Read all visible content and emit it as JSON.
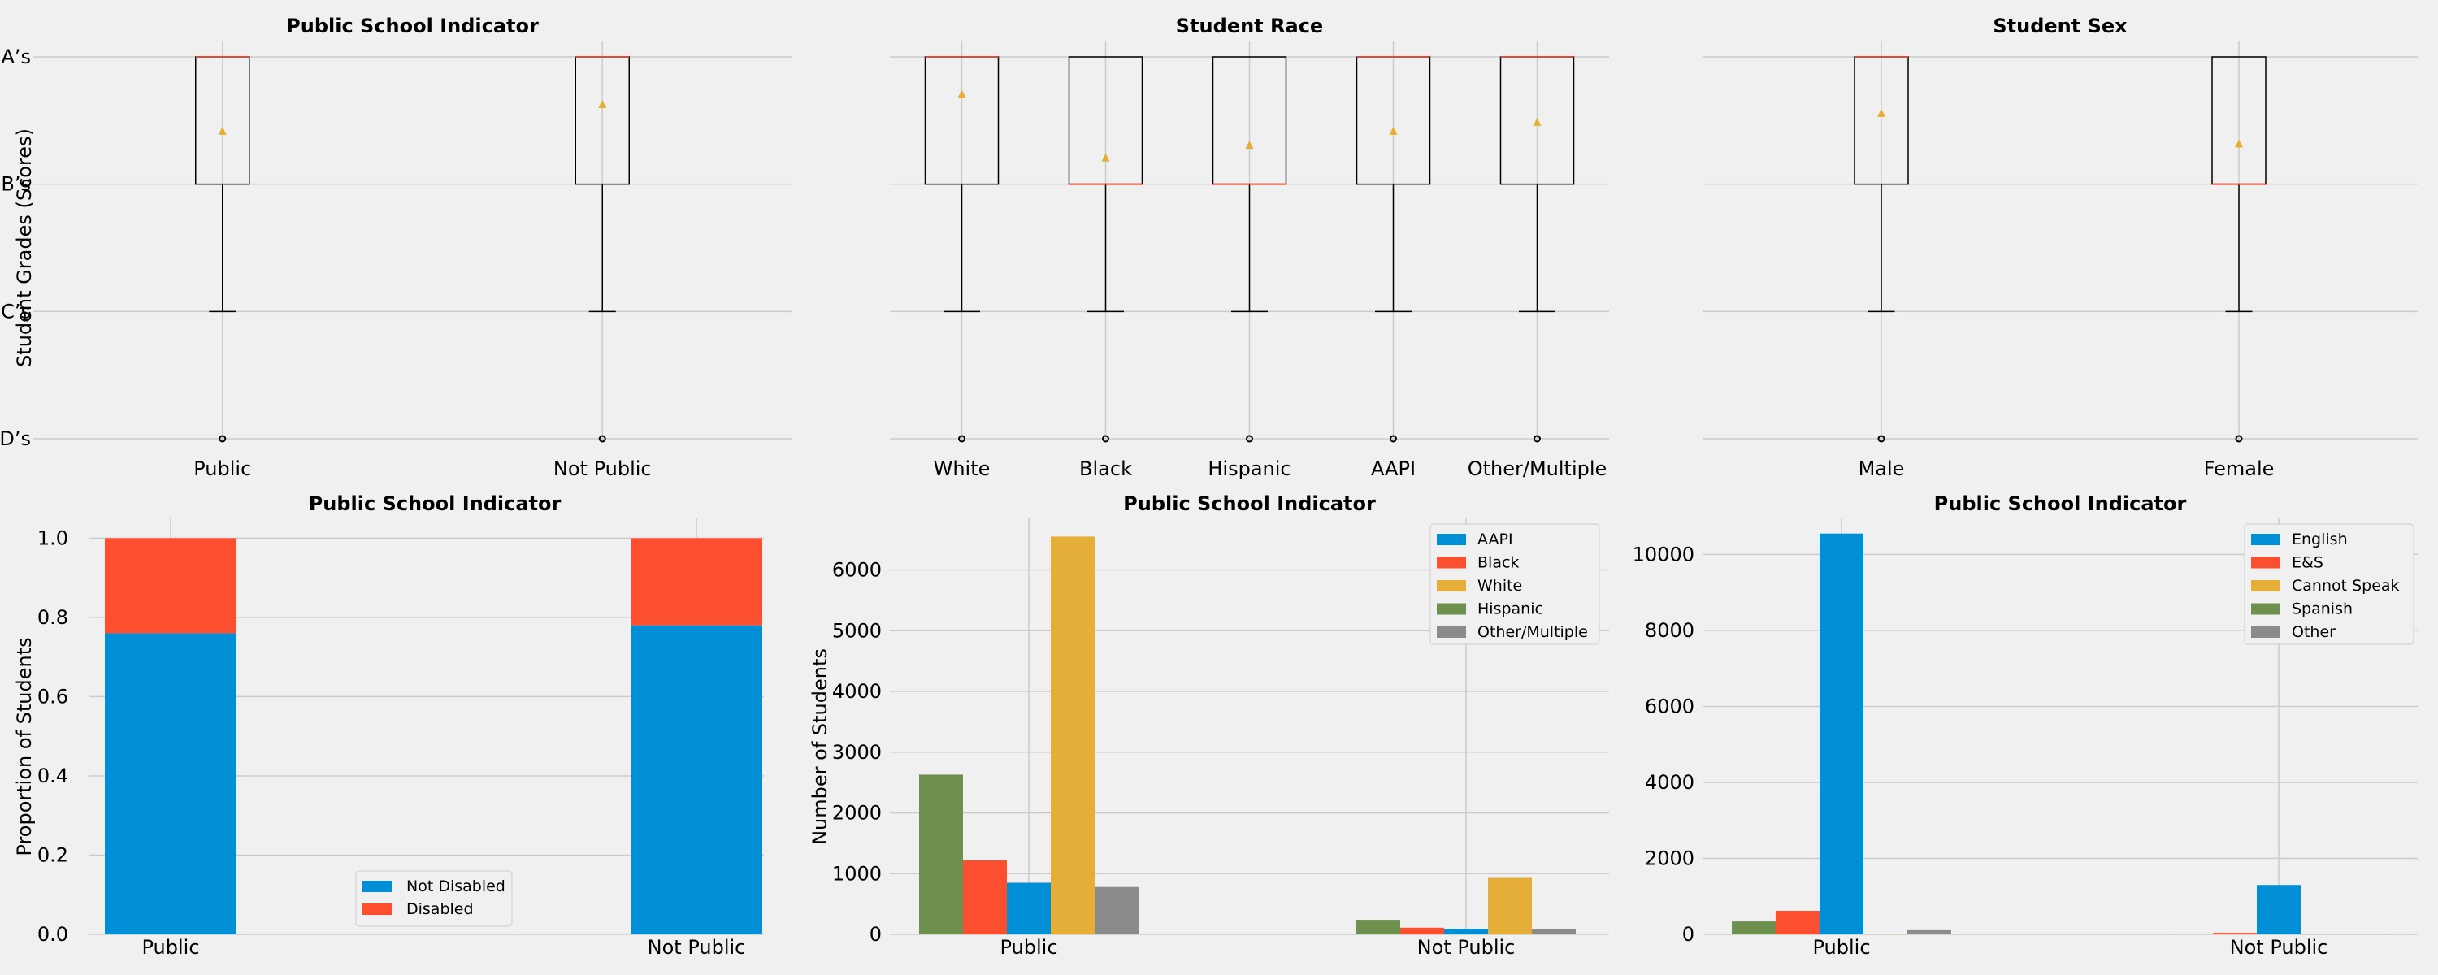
{
  "colors": {
    "background": "#f0f0f0",
    "grid": "#cbcbcb",
    "blue": "#008fd5",
    "red": "#fc4f30",
    "yellow": "#e5ae38",
    "green": "#6d904f",
    "gray": "#8b8b8b",
    "median": "#e24a33",
    "mean_marker": "#e5ae38"
  },
  "chart_data": [
    {
      "type": "box",
      "title": "Public School Indicator",
      "ylabel": "Student Grades (Scores)",
      "y_tick_labels": [
        "D’s",
        "C’s",
        "B’s",
        "A’s"
      ],
      "ylim": [
        0,
        3
      ],
      "categories": [
        "Public",
        "Not Public"
      ],
      "boxes": [
        {
          "q1": 2,
          "median": 3,
          "q3": 3,
          "whisker_low": 1,
          "whisker_high": 3,
          "mean": 2.42,
          "outliers": [
            0
          ]
        },
        {
          "q1": 2,
          "median": 3,
          "q3": 3,
          "whisker_low": 1,
          "whisker_high": 3,
          "mean": 2.63,
          "outliers": [
            0
          ]
        }
      ]
    },
    {
      "type": "box",
      "title": "Student Race",
      "ylim": [
        0,
        3
      ],
      "categories": [
        "White",
        "Black",
        "Hispanic",
        "AAPI",
        "Other/Multiple"
      ],
      "boxes": [
        {
          "q1": 2,
          "median": 3,
          "q3": 3,
          "whisker_low": 1,
          "whisker_high": 3,
          "mean": 2.71,
          "outliers": [
            0
          ]
        },
        {
          "q1": 2,
          "median": 2,
          "q3": 3,
          "whisker_low": 1,
          "whisker_high": 3,
          "mean": 2.21,
          "outliers": [
            0
          ]
        },
        {
          "q1": 2,
          "median": 2,
          "q3": 3,
          "whisker_low": 1,
          "whisker_high": 3,
          "mean": 2.31,
          "outliers": [
            0
          ]
        },
        {
          "q1": 2,
          "median": 3,
          "q3": 3,
          "whisker_low": 1,
          "whisker_high": 3,
          "mean": 2.42,
          "outliers": [
            0
          ]
        },
        {
          "q1": 2,
          "median": 3,
          "q3": 3,
          "whisker_low": 1,
          "whisker_high": 3,
          "mean": 2.49,
          "outliers": [
            0
          ]
        }
      ]
    },
    {
      "type": "box",
      "title": "Student Sex",
      "ylim": [
        0,
        3
      ],
      "categories": [
        "Male",
        "Female"
      ],
      "boxes": [
        {
          "q1": 2,
          "median": 3,
          "q3": 3,
          "whisker_low": 1,
          "whisker_high": 3,
          "mean": 2.56,
          "outliers": [
            0
          ]
        },
        {
          "q1": 2,
          "median": 2,
          "q3": 3,
          "whisker_low": 1,
          "whisker_high": 3,
          "mean": 2.32,
          "outliers": [
            0
          ]
        }
      ]
    },
    {
      "type": "bar",
      "stacked": true,
      "title": "Public School Indicator",
      "ylabel": "Proportion of Students",
      "ylim": [
        0,
        1.05
      ],
      "y_ticks": [
        0.0,
        0.2,
        0.4,
        0.6,
        0.8,
        1.0
      ],
      "y_tick_labels": [
        "0.0",
        "0.2",
        "0.4",
        "0.6",
        "0.8",
        "1.0"
      ],
      "categories": [
        "Public",
        "Not Public"
      ],
      "legend_position": "lower-center",
      "series": [
        {
          "name": "Not Disabled",
          "color": "#008fd5",
          "values": [
            0.76,
            0.78
          ]
        },
        {
          "name": "Disabled",
          "color": "#fc4f30",
          "values": [
            0.24,
            0.22
          ]
        }
      ]
    },
    {
      "type": "bar",
      "title": "Public School Indicator",
      "ylabel": "Number of Students",
      "ylim": [
        0,
        6850
      ],
      "y_ticks": [
        0,
        1000,
        2000,
        3000,
        4000,
        5000,
        6000
      ],
      "y_tick_labels": [
        "0",
        "1000",
        "2000",
        "3000",
        "4000",
        "5000",
        "6000"
      ],
      "categories": [
        "Public",
        "Not Public"
      ],
      "legend_position": "top-right",
      "bar_order": [
        "Hispanic",
        "Black",
        "AAPI",
        "White",
        "Other/Multiple"
      ],
      "series": [
        {
          "name": "AAPI",
          "color": "#008fd5",
          "values": [
            850,
            90
          ]
        },
        {
          "name": "Black",
          "color": "#fc4f30",
          "values": [
            1220,
            110
          ]
        },
        {
          "name": "White",
          "color": "#e5ae38",
          "values": [
            6550,
            930
          ]
        },
        {
          "name": "Hispanic",
          "color": "#6d904f",
          "values": [
            2630,
            240
          ]
        },
        {
          "name": "Other/Multiple",
          "color": "#8b8b8b",
          "values": [
            780,
            80
          ]
        }
      ]
    },
    {
      "type": "bar",
      "title": "Public School Indicator",
      "ylim": [
        0,
        10950
      ],
      "y_ticks": [
        0,
        2000,
        4000,
        6000,
        8000,
        10000
      ],
      "y_tick_labels": [
        "0",
        "2000",
        "4000",
        "6000",
        "8000",
        "10000"
      ],
      "categories": [
        "Public",
        "Not Public"
      ],
      "legend_position": "top-right",
      "bar_order": [
        "Spanish",
        "E&S",
        "English",
        "Cannot Speak",
        "Other"
      ],
      "series": [
        {
          "name": "English",
          "color": "#008fd5",
          "values": [
            10550,
            1300
          ]
        },
        {
          "name": "E&S",
          "color": "#fc4f30",
          "values": [
            620,
            40
          ]
        },
        {
          "name": "Cannot Speak",
          "color": "#e5ae38",
          "values": [
            5,
            2
          ]
        },
        {
          "name": "Spanish",
          "color": "#6d904f",
          "values": [
            340,
            10
          ]
        },
        {
          "name": "Other",
          "color": "#8b8b8b",
          "values": [
            110,
            5
          ]
        }
      ]
    }
  ]
}
